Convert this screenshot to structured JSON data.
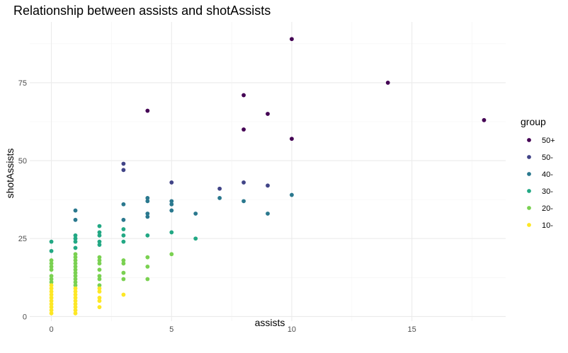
{
  "chart_data": {
    "type": "scatter",
    "title": "Relationship between assists and shotAssists",
    "xlabel": "assists",
    "ylabel": "shotAssists",
    "xlim": [
      -0.9,
      18.9
    ],
    "ylim": [
      -1.5,
      94.5
    ],
    "x_ticks": [
      0,
      5,
      10,
      15
    ],
    "y_ticks": [
      0,
      25,
      50,
      75
    ],
    "x_tick_labels": [
      "0",
      "5",
      "10",
      "15"
    ],
    "y_tick_labels": [
      "0",
      "25",
      "50",
      "75"
    ],
    "grid": true,
    "legend": {
      "title": "group",
      "position": "right",
      "entries": [
        {
          "label": "50+",
          "color": "#440154"
        },
        {
          "label": "50-",
          "color": "#414487"
        },
        {
          "label": "40-",
          "color": "#2A788E"
        },
        {
          "label": "30-",
          "color": "#22A884"
        },
        {
          "label": "20-",
          "color": "#7AD151"
        },
        {
          "label": "10-",
          "color": "#FDE725"
        }
      ]
    },
    "series": [
      {
        "name": "50+",
        "color": "#440154",
        "points": [
          [
            4,
            66
          ],
          [
            8,
            71
          ],
          [
            8,
            60
          ],
          [
            9,
            65
          ],
          [
            10,
            89
          ],
          [
            10,
            57
          ],
          [
            14,
            75
          ],
          [
            18,
            63
          ]
        ]
      },
      {
        "name": "50-",
        "color": "#414487",
        "points": [
          [
            3,
            49
          ],
          [
            3,
            47
          ],
          [
            5,
            43
          ],
          [
            7,
            41
          ],
          [
            8,
            43
          ],
          [
            9,
            42
          ]
        ]
      },
      {
        "name": "40-",
        "color": "#2A788E",
        "points": [
          [
            1,
            34
          ],
          [
            1,
            31
          ],
          [
            3,
            36
          ],
          [
            3,
            31
          ],
          [
            4,
            38
          ],
          [
            4,
            37
          ],
          [
            4,
            33
          ],
          [
            4,
            32
          ],
          [
            5,
            37
          ],
          [
            5,
            36
          ],
          [
            5,
            34
          ],
          [
            6,
            33
          ],
          [
            7,
            38
          ],
          [
            8,
            37
          ],
          [
            9,
            33
          ],
          [
            10,
            39
          ]
        ]
      },
      {
        "name": "30-",
        "color": "#22A884",
        "points": [
          [
            0,
            24
          ],
          [
            0,
            21
          ],
          [
            1,
            26
          ],
          [
            1,
            25
          ],
          [
            1,
            24
          ],
          [
            1,
            22
          ],
          [
            2,
            29
          ],
          [
            2,
            27
          ],
          [
            2,
            26
          ],
          [
            2,
            24
          ],
          [
            2,
            23
          ],
          [
            3,
            28
          ],
          [
            3,
            26
          ],
          [
            3,
            24
          ],
          [
            4,
            26
          ],
          [
            5,
            27
          ],
          [
            6,
            25
          ]
        ]
      },
      {
        "name": "20-",
        "color": "#7AD151",
        "points": [
          [
            0,
            18
          ],
          [
            0,
            17
          ],
          [
            0,
            16
          ],
          [
            0,
            15
          ],
          [
            0,
            13
          ],
          [
            0,
            12
          ],
          [
            0,
            11
          ],
          [
            1,
            20
          ],
          [
            1,
            19
          ],
          [
            1,
            18
          ],
          [
            1,
            17
          ],
          [
            1,
            16
          ],
          [
            1,
            15
          ],
          [
            1,
            14
          ],
          [
            1,
            13
          ],
          [
            1,
            12
          ],
          [
            1,
            11
          ],
          [
            1,
            10
          ],
          [
            2,
            19
          ],
          [
            2,
            18
          ],
          [
            2,
            17
          ],
          [
            2,
            15
          ],
          [
            2,
            13
          ],
          [
            2,
            12
          ],
          [
            2,
            10
          ],
          [
            3,
            18
          ],
          [
            3,
            17
          ],
          [
            3,
            14
          ],
          [
            3,
            12
          ],
          [
            4,
            19
          ],
          [
            4,
            16
          ],
          [
            4,
            12
          ],
          [
            5,
            20
          ]
        ]
      },
      {
        "name": "10-",
        "color": "#FDE725",
        "points": [
          [
            0,
            10
          ],
          [
            0,
            9
          ],
          [
            0,
            8
          ],
          [
            0,
            7
          ],
          [
            0,
            6
          ],
          [
            0,
            5
          ],
          [
            0,
            4
          ],
          [
            0,
            3
          ],
          [
            0,
            2
          ],
          [
            0,
            1
          ],
          [
            1,
            9
          ],
          [
            1,
            8
          ],
          [
            1,
            7
          ],
          [
            1,
            6
          ],
          [
            1,
            5
          ],
          [
            1,
            4
          ],
          [
            1,
            3
          ],
          [
            1,
            2
          ],
          [
            1,
            1
          ],
          [
            2,
            9
          ],
          [
            2,
            8
          ],
          [
            2,
            6
          ],
          [
            2,
            5
          ],
          [
            2,
            3
          ],
          [
            3,
            7
          ]
        ]
      }
    ]
  }
}
